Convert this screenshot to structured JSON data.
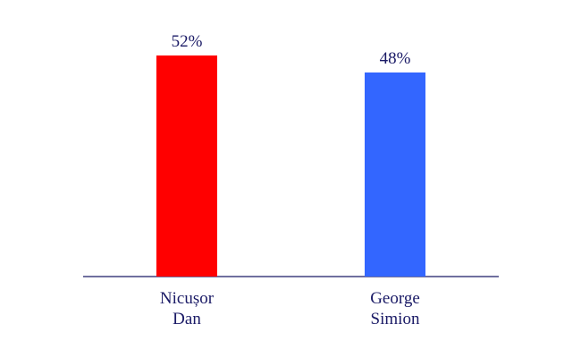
{
  "chart_data": {
    "type": "bar",
    "title": "",
    "xlabel": "",
    "ylabel": "",
    "categories": [
      [
        "Nicușor",
        "Dan"
      ],
      [
        "George",
        "Simion"
      ]
    ],
    "values": [
      52,
      48
    ],
    "value_labels": [
      "52%",
      "48%"
    ],
    "bar_colors": [
      "#ff0000",
      "#3366ff"
    ],
    "ylim": [
      0,
      52
    ],
    "grid": false,
    "legend": "none"
  },
  "colors": {
    "axis": "#1a1a66",
    "label_text": "#1a1a66"
  }
}
